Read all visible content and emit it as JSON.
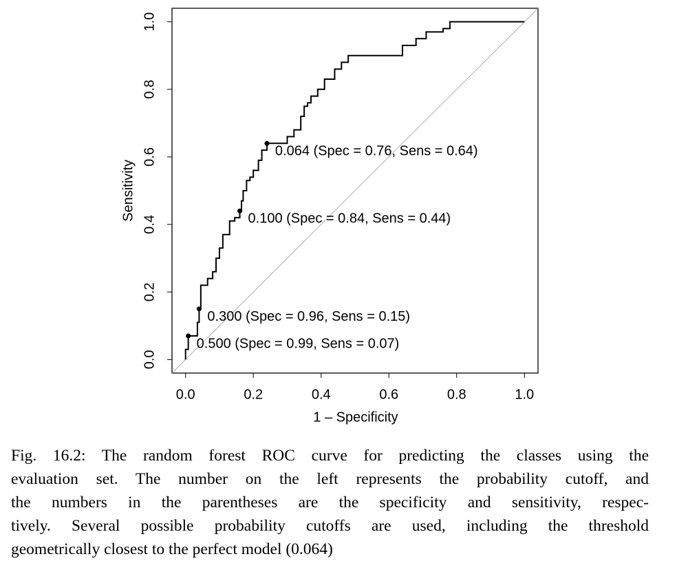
{
  "chart_data": {
    "type": "line",
    "xlabel": "1 – Specificity",
    "ylabel": "Sensitivity",
    "xlim": [
      -0.04,
      1.04
    ],
    "ylim": [
      -0.04,
      1.04
    ],
    "xticks": [
      {
        "value": 0,
        "label": "0.0"
      },
      0.2,
      0.4,
      0.6,
      0.8,
      {
        "value": 1,
        "label": "1.0"
      }
    ],
    "yticks": [
      {
        "value": 0,
        "label": "0.0"
      },
      0.2,
      0.4,
      0.6,
      0.8,
      {
        "value": 1,
        "label": "1.0"
      }
    ],
    "series": [
      {
        "color": "#000000",
        "x": [
          0,
          0,
          0.008,
          0.008,
          0.035,
          0.035,
          0.04,
          0.04,
          0.045,
          0.045,
          0.065,
          0.065,
          0.08,
          0.08,
          0.09,
          0.09,
          0.1,
          0.1,
          0.11,
          0.11,
          0.13,
          0.13,
          0.145,
          0.145,
          0.16,
          0.16,
          0.165,
          0.165,
          0.17,
          0.17,
          0.18,
          0.18,
          0.19,
          0.19,
          0.2,
          0.2,
          0.215,
          0.215,
          0.225,
          0.225,
          0.24,
          0.24,
          0.3,
          0.3,
          0.32,
          0.32,
          0.34,
          0.34,
          0.35,
          0.35,
          0.36,
          0.36,
          0.37,
          0.37,
          0.39,
          0.39,
          0.41,
          0.41,
          0.44,
          0.44,
          0.46,
          0.46,
          0.48,
          0.48,
          0.64,
          0.64,
          0.68,
          0.68,
          0.71,
          0.71,
          0.76,
          0.76,
          0.78,
          0.78,
          1.0
        ],
        "values": [
          0,
          0.03,
          0.03,
          0.07,
          0.07,
          0.11,
          0.11,
          0.15,
          0.15,
          0.22,
          0.22,
          0.24,
          0.24,
          0.26,
          0.26,
          0.3,
          0.3,
          0.33,
          0.33,
          0.37,
          0.37,
          0.41,
          0.41,
          0.42,
          0.42,
          0.44,
          0.44,
          0.47,
          0.47,
          0.5,
          0.5,
          0.53,
          0.53,
          0.54,
          0.54,
          0.56,
          0.56,
          0.59,
          0.59,
          0.62,
          0.62,
          0.64,
          0.64,
          0.66,
          0.66,
          0.68,
          0.68,
          0.72,
          0.72,
          0.75,
          0.75,
          0.76,
          0.76,
          0.78,
          0.78,
          0.8,
          0.8,
          0.83,
          0.83,
          0.86,
          0.86,
          0.88,
          0.88,
          0.9,
          0.9,
          0.93,
          0.93,
          0.95,
          0.95,
          0.97,
          0.97,
          0.98,
          0.98,
          1.0,
          1.0
        ]
      }
    ],
    "points": [
      {
        "x": 0.24,
        "y": 0.64,
        "label": "0.064 (Spec = 0.76, Sens = 0.64)"
      },
      {
        "x": 0.16,
        "y": 0.44,
        "label": "0.100 (Spec = 0.84, Sens = 0.44)"
      },
      {
        "x": 0.04,
        "y": 0.15,
        "label": "0.300 (Spec = 0.96, Sens = 0.15)"
      },
      {
        "x": 0.008,
        "y": 0.07,
        "label": "0.500 (Spec = 0.99, Sens = 0.07)"
      }
    ],
    "caption_lines": [
      "Fig. 16.2: The random forest ROC curve for predicting the classes using the",
      "evaluation set. The number on the left represents the probability cutoff, and",
      "the numbers in the parentheses are the specificity and sensitivity, respec-",
      "tively. Several possible probability cutoffs are used, including the threshold",
      "geometrically closest to the perfect model (0.064)"
    ]
  }
}
